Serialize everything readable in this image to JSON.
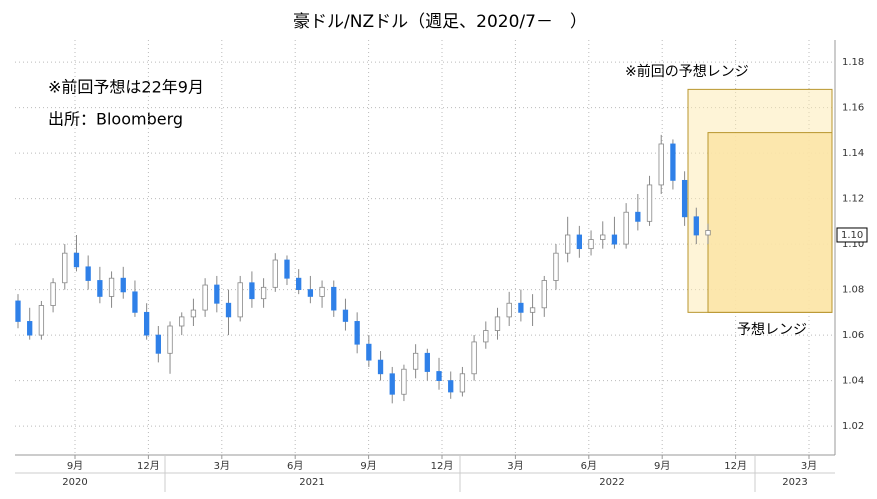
{
  "chart_data": {
    "type": "candlestick",
    "title": "豪ドル/NZドル（週足、2020/7－　）",
    "annotations": [
      "※前回予想は22年9月",
      "出所：Bloomberg"
    ],
    "ranges": [
      {
        "name": "※前回の予想レンジ",
        "values": [
          1.07,
          1.168
        ],
        "color": "#fdeab0"
      },
      {
        "name": "予想レンジ",
        "values": [
          1.07,
          1.149
        ],
        "color": "#fce4a6"
      }
    ],
    "open": [
      1.075,
      1.066,
      1.06,
      1.073,
      1.083,
      1.096,
      1.09,
      1.084,
      1.077,
      1.085,
      1.079,
      1.07,
      1.06,
      1.052,
      1.064,
      1.068,
      1.071,
      1.082,
      1.074,
      1.068,
      1.083,
      1.076,
      1.081,
      1.093,
      1.085,
      1.08,
      1.077,
      1.081,
      1.071,
      1.066,
      1.056,
      1.049,
      1.043,
      1.034,
      1.045,
      1.052,
      1.044,
      1.04,
      1.035,
      1.043,
      1.057,
      1.062,
      1.068,
      1.074,
      1.07,
      1.072,
      1.084,
      1.096,
      1.104,
      1.098,
      1.102,
      1.104,
      1.1,
      1.114,
      1.11,
      1.126,
      1.144,
      1.128,
      1.112,
      1.104
    ],
    "high": [
      1.078,
      1.072,
      1.075,
      1.085,
      1.1,
      1.104,
      1.095,
      1.09,
      1.088,
      1.09,
      1.084,
      1.074,
      1.064,
      1.066,
      1.07,
      1.076,
      1.085,
      1.086,
      1.08,
      1.086,
      1.088,
      1.085,
      1.096,
      1.095,
      1.089,
      1.086,
      1.084,
      1.084,
      1.076,
      1.07,
      1.06,
      1.053,
      1.046,
      1.047,
      1.056,
      1.054,
      1.05,
      1.044,
      1.046,
      1.06,
      1.066,
      1.072,
      1.079,
      1.08,
      1.078,
      1.086,
      1.1,
      1.112,
      1.108,
      1.106,
      1.11,
      1.112,
      1.118,
      1.122,
      1.13,
      1.148,
      1.146,
      1.132,
      1.116,
      1.109
    ],
    "low": [
      1.063,
      1.058,
      1.058,
      1.07,
      1.08,
      1.088,
      1.08,
      1.074,
      1.072,
      1.076,
      1.068,
      1.058,
      1.048,
      1.043,
      1.06,
      1.064,
      1.068,
      1.07,
      1.06,
      1.066,
      1.072,
      1.072,
      1.079,
      1.082,
      1.078,
      1.074,
      1.072,
      1.068,
      1.062,
      1.052,
      1.046,
      1.04,
      1.03,
      1.031,
      1.041,
      1.04,
      1.036,
      1.032,
      1.033,
      1.04,
      1.054,
      1.058,
      1.064,
      1.066,
      1.064,
      1.068,
      1.08,
      1.092,
      1.094,
      1.095,
      1.098,
      1.098,
      1.098,
      1.106,
      1.108,
      1.122,
      1.124,
      1.108,
      1.1,
      1.1
    ],
    "close": [
      1.066,
      1.06,
      1.073,
      1.083,
      1.096,
      1.09,
      1.084,
      1.077,
      1.085,
      1.079,
      1.07,
      1.06,
      1.052,
      1.064,
      1.068,
      1.071,
      1.082,
      1.074,
      1.068,
      1.083,
      1.076,
      1.081,
      1.093,
      1.085,
      1.08,
      1.077,
      1.081,
      1.071,
      1.066,
      1.056,
      1.049,
      1.043,
      1.034,
      1.045,
      1.052,
      1.044,
      1.04,
      1.035,
      1.043,
      1.057,
      1.062,
      1.068,
      1.074,
      1.07,
      1.072,
      1.084,
      1.096,
      1.104,
      1.098,
      1.102,
      1.104,
      1.1,
      1.114,
      1.11,
      1.126,
      1.144,
      1.128,
      1.112,
      1.104,
      1.106
    ],
    "up_color": "#ffffff",
    "down_color": "#2f80e8",
    "last_price": {
      "value": 1.104,
      "label": "1.10"
    },
    "ylim": [
      1.0073,
      1.1897
    ],
    "yticks": [
      1.02,
      1.04,
      1.06,
      1.08,
      {
        "value": 1.1,
        "label": "1.10"
      },
      1.12,
      1.14,
      1.16,
      1.18
    ],
    "xticks": [
      "9月",
      "12月",
      "3月",
      "6月",
      "9月",
      "12月",
      "3月",
      "6月",
      "9月",
      "12月",
      "3月"
    ],
    "years": [
      "2020",
      "2021",
      "2022",
      "2023"
    ],
    "grid": true
  }
}
